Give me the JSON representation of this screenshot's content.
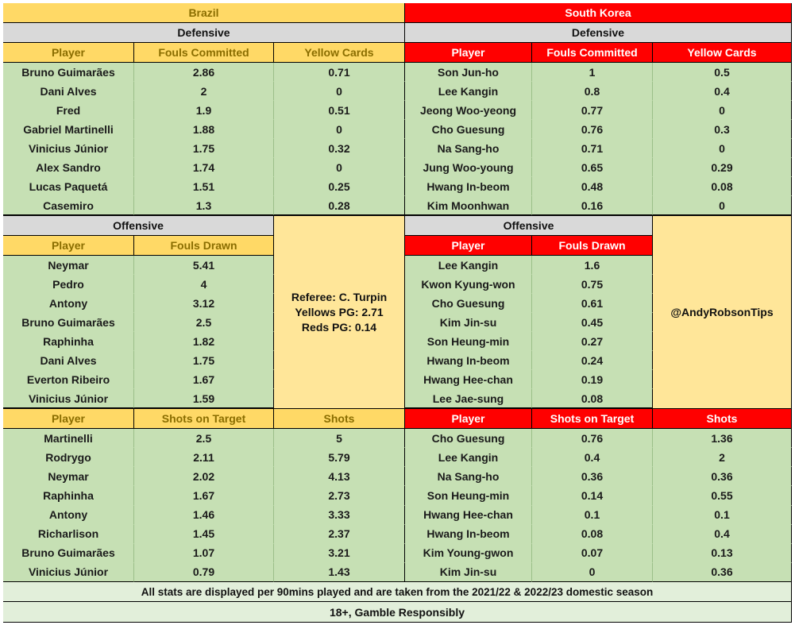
{
  "brazil": {
    "title": "Brazil",
    "defensive": {
      "label": "Defensive",
      "headers": [
        "Player",
        "Fouls Committed",
        "Yellow Cards"
      ],
      "rows": [
        [
          "Bruno Guimarães",
          "2.86",
          "0.71"
        ],
        [
          "Dani Alves",
          "2",
          "0"
        ],
        [
          "Fred",
          "1.9",
          "0.51"
        ],
        [
          "Gabriel Martinelli",
          "1.88",
          "0"
        ],
        [
          "Vinicius Júnior",
          "1.75",
          "0.32"
        ],
        [
          "Alex Sandro",
          "1.74",
          "0"
        ],
        [
          "Lucas Paquetá",
          "1.51",
          "0.25"
        ],
        [
          "Casemiro",
          "1.3",
          "0.28"
        ]
      ]
    },
    "offensive": {
      "label": "Offensive",
      "headers": [
        "Player",
        "Fouls Drawn"
      ],
      "rows": [
        [
          "Neymar",
          "5.41"
        ],
        [
          "Pedro",
          "4"
        ],
        [
          "Antony",
          "3.12"
        ],
        [
          "Bruno Guimarães",
          "2.5"
        ],
        [
          "Raphinha",
          "1.82"
        ],
        [
          "Dani Alves",
          "1.75"
        ],
        [
          "Everton Ribeiro",
          "1.67"
        ],
        [
          "Vinicius Júnior",
          "1.59"
        ]
      ]
    },
    "shots": {
      "headers": [
        "Player",
        "Shots on Target",
        "Shots"
      ],
      "rows": [
        [
          "Martinelli",
          "2.5",
          "5"
        ],
        [
          "Rodrygo",
          "2.11",
          "5.79"
        ],
        [
          "Neymar",
          "2.02",
          "4.13"
        ],
        [
          "Raphinha",
          "1.67",
          "2.73"
        ],
        [
          "Antony",
          "1.46",
          "3.33"
        ],
        [
          "Richarlison",
          "1.45",
          "2.37"
        ],
        [
          "Bruno Guimarães",
          "1.07",
          "3.21"
        ],
        [
          "Vinicius Júnior",
          "0.79",
          "1.43"
        ]
      ]
    }
  },
  "korea": {
    "title": "South Korea",
    "defensive": {
      "label": "Defensive",
      "headers": [
        "Player",
        "Fouls Committed",
        "Yellow Cards"
      ],
      "rows": [
        [
          "Son Jun-ho",
          "1",
          "0.5"
        ],
        [
          "Lee Kangin",
          "0.8",
          "0.4"
        ],
        [
          "Jeong Woo-yeong",
          "0.77",
          "0"
        ],
        [
          "Cho Guesung",
          "0.76",
          "0.3"
        ],
        [
          "Na Sang-ho",
          "0.71",
          "0"
        ],
        [
          "Jung Woo-young",
          "0.65",
          "0.29"
        ],
        [
          "Hwang In-beom",
          "0.48",
          "0.08"
        ],
        [
          "Kim Moonhwan",
          "0.16",
          "0"
        ]
      ]
    },
    "offensive": {
      "label": "Offensive",
      "headers": [
        "Player",
        "Fouls Drawn"
      ],
      "rows": [
        [
          "Lee Kangin",
          "1.6"
        ],
        [
          "Kwon Kyung-won",
          "0.75"
        ],
        [
          "Cho Guesung",
          "0.61"
        ],
        [
          "Kim Jin-su",
          "0.45"
        ],
        [
          "Son Heung-min",
          "0.27"
        ],
        [
          "Hwang In-beom",
          "0.24"
        ],
        [
          "Hwang Hee-chan",
          "0.19"
        ],
        [
          "Lee Jae-sung",
          "0.08"
        ]
      ]
    },
    "shots": {
      "headers": [
        "Player",
        "Shots on Target",
        "Shots"
      ],
      "rows": [
        [
          "Cho Guesung",
          "0.76",
          "1.36"
        ],
        [
          "Lee Kangin",
          "0.4",
          "2"
        ],
        [
          "Na Sang-ho",
          "0.36",
          "0.36"
        ],
        [
          "Son Heung-min",
          "0.14",
          "0.55"
        ],
        [
          "Hwang Hee-chan",
          "0.1",
          "0.1"
        ],
        [
          "Hwang In-beom",
          "0.08",
          "0.4"
        ],
        [
          "Kim Young-gwon",
          "0.07",
          "0.13"
        ],
        [
          "Kim Jin-su",
          "0",
          "0.36"
        ]
      ]
    }
  },
  "referee": {
    "name_line": "Referee: C. Turpin",
    "yellows_line": "Yellows PG: 2.71",
    "reds_line": "Reds PG: 0.14"
  },
  "handle": "@AndyRobsonTips",
  "footer": {
    "note": "All stats are displayed per 90mins played and are taken from the 2021/22 & 2022/23 domestic season",
    "disclaimer": "18+, Gamble Responsibly"
  },
  "colors": {
    "brazil_header": "#ffd966",
    "korea_header": "#ff0000",
    "section_grey": "#d9d9d9",
    "data_green": "#c6e0b4",
    "info_cream": "#ffe699"
  }
}
